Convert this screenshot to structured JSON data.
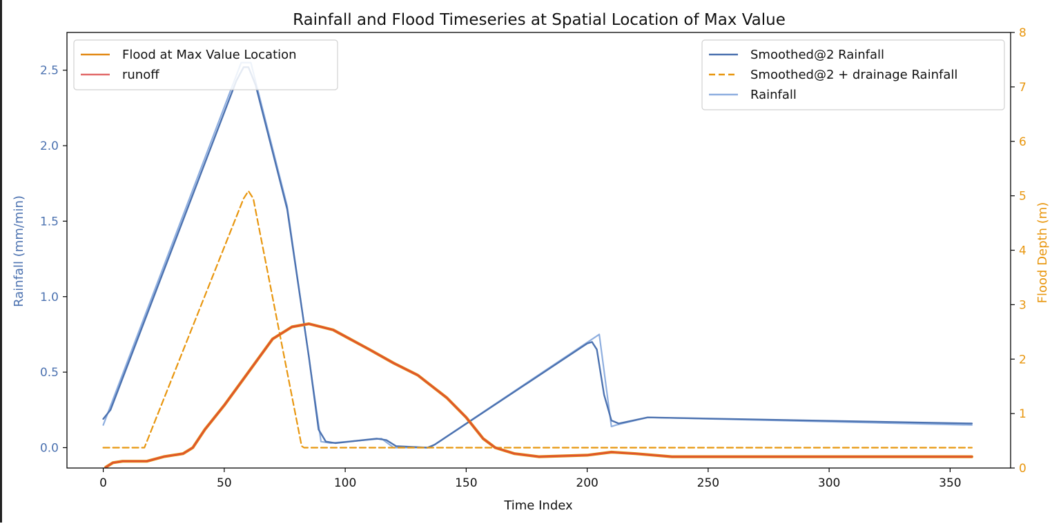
{
  "chart_data": {
    "type": "line",
    "title": "Rainfall and Flood Timeseries at Spatial Location of Max Value",
    "xlabel": "Time Index",
    "ylabel": "Rainfall (mm/min)",
    "y2label": "Flood Depth (m)",
    "xlim": [
      -15,
      375
    ],
    "ylim": [
      -0.135,
      2.75
    ],
    "y2lim": [
      0,
      8
    ],
    "xticks": [
      0,
      50,
      100,
      150,
      200,
      250,
      300,
      350
    ],
    "xtick_labels": [
      "0",
      "50",
      "100",
      "150",
      "200",
      "250",
      "300",
      "350"
    ],
    "yticks": [
      0.0,
      0.5,
      1.0,
      1.5,
      2.0,
      2.5
    ],
    "ytick_labels": [
      "0.0",
      "0.5",
      "1.0",
      "1.5",
      "2.0",
      "2.5"
    ],
    "y2ticks": [
      0,
      1,
      2,
      3,
      4,
      5,
      6,
      7,
      8
    ],
    "y2tick_labels": [
      "0",
      "1",
      "2",
      "3",
      "4",
      "5",
      "6",
      "7",
      "8"
    ],
    "grid": false,
    "colors": {
      "left_axis": "#4c72b0",
      "right_axis": "#e8960e",
      "rainfall_smoothed": "#4c72b0",
      "rainfall_raw": "#8eaedf",
      "drainage": "#e8960e",
      "flood": "#e28a17",
      "runoff": "#e0502f"
    },
    "legend_left": {
      "placement": "upper-left",
      "entries": [
        {
          "label": "Flood at Max Value Location",
          "color": "#e28a17",
          "style": "solid"
        },
        {
          "label": "runoff",
          "color": "#e26a6a",
          "style": "solid"
        }
      ]
    },
    "legend_right": {
      "placement": "upper-right",
      "entries": [
        {
          "label": "Smoothed@2 Rainfall",
          "color": "#4c72b0",
          "style": "solid"
        },
        {
          "label": "Smoothed@2 + drainage Rainfall",
          "color": "#e8960e",
          "style": "dashed"
        },
        {
          "label": "Rainfall",
          "color": "#8eaedf",
          "style": "solid"
        }
      ]
    },
    "series": [
      {
        "name": "Rainfall",
        "axis": "left",
        "points": [
          [
            0,
            0.15
          ],
          [
            57,
            2.55
          ],
          [
            61,
            2.55
          ],
          [
            76,
            1.6
          ],
          [
            90,
            0.04
          ],
          [
            94,
            0.03
          ],
          [
            115,
            0.06
          ],
          [
            120,
            0.0
          ],
          [
            135,
            0.0
          ],
          [
            205,
            0.75
          ],
          [
            210,
            0.14
          ],
          [
            212,
            0.15
          ],
          [
            225,
            0.2
          ],
          [
            359,
            0.15
          ]
        ]
      },
      {
        "name": "Smoothed@2 Rainfall",
        "axis": "left",
        "points": [
          [
            0,
            0.19
          ],
          [
            3,
            0.25
          ],
          [
            55,
            2.43
          ],
          [
            58,
            2.52
          ],
          [
            60,
            2.52
          ],
          [
            63,
            2.4
          ],
          [
            76,
            1.58
          ],
          [
            85,
            0.6
          ],
          [
            89,
            0.12
          ],
          [
            92,
            0.04
          ],
          [
            96,
            0.03
          ],
          [
            113,
            0.06
          ],
          [
            117,
            0.05
          ],
          [
            121,
            0.01
          ],
          [
            134,
            0.0
          ],
          [
            137,
            0.02
          ],
          [
            200,
            0.69
          ],
          [
            202,
            0.7
          ],
          [
            204,
            0.65
          ],
          [
            207,
            0.35
          ],
          [
            210,
            0.18
          ],
          [
            213,
            0.16
          ],
          [
            225,
            0.2
          ],
          [
            359,
            0.16
          ]
        ]
      },
      {
        "name": "Smoothed@2 + drainage Rainfall",
        "axis": "left",
        "points": [
          [
            0,
            0.0
          ],
          [
            17,
            0.0
          ],
          [
            58,
            1.65
          ],
          [
            60,
            1.7
          ],
          [
            62,
            1.65
          ],
          [
            82,
            0.01
          ],
          [
            83,
            0.0
          ],
          [
            359,
            0.0
          ]
        ]
      },
      {
        "name": "Flood at Max Value Location",
        "axis": "left",
        "points": [
          [
            1,
            -0.13
          ],
          [
            4,
            -0.1
          ],
          [
            8,
            -0.09
          ],
          [
            18,
            -0.09
          ],
          [
            25,
            -0.06
          ],
          [
            33,
            -0.04
          ],
          [
            37,
            0.0
          ],
          [
            42,
            0.12
          ],
          [
            50,
            0.28
          ],
          [
            60,
            0.5
          ],
          [
            70,
            0.72
          ],
          [
            78,
            0.8
          ],
          [
            85,
            0.82
          ],
          [
            95,
            0.78
          ],
          [
            110,
            0.65
          ],
          [
            120,
            0.56
          ],
          [
            130,
            0.48
          ],
          [
            142,
            0.33
          ],
          [
            150,
            0.2
          ],
          [
            157,
            0.06
          ],
          [
            162,
            0.0
          ],
          [
            170,
            -0.04
          ],
          [
            180,
            -0.06
          ],
          [
            200,
            -0.05
          ],
          [
            210,
            -0.03
          ],
          [
            220,
            -0.04
          ],
          [
            235,
            -0.06
          ],
          [
            280,
            -0.06
          ],
          [
            359,
            -0.06
          ]
        ]
      },
      {
        "name": "runoff",
        "axis": "left",
        "points": [
          [
            1,
            -0.13
          ],
          [
            4,
            -0.1
          ],
          [
            8,
            -0.09
          ],
          [
            18,
            -0.09
          ],
          [
            25,
            -0.06
          ],
          [
            33,
            -0.04
          ],
          [
            37,
            0.0
          ],
          [
            42,
            0.12
          ],
          [
            50,
            0.28
          ],
          [
            60,
            0.5
          ],
          [
            70,
            0.72
          ],
          [
            78,
            0.8
          ],
          [
            85,
            0.82
          ],
          [
            95,
            0.78
          ],
          [
            110,
            0.65
          ],
          [
            120,
            0.56
          ],
          [
            130,
            0.48
          ],
          [
            142,
            0.33
          ],
          [
            150,
            0.2
          ],
          [
            157,
            0.06
          ],
          [
            162,
            0.0
          ],
          [
            170,
            -0.04
          ],
          [
            180,
            -0.06
          ],
          [
            200,
            -0.05
          ],
          [
            210,
            -0.03
          ],
          [
            220,
            -0.04
          ],
          [
            235,
            -0.06
          ],
          [
            280,
            -0.06
          ],
          [
            359,
            -0.06
          ]
        ]
      }
    ]
  }
}
